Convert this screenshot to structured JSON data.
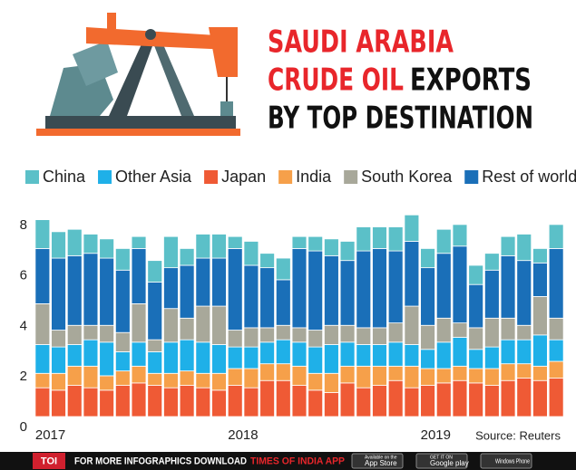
{
  "chart_data": {
    "type": "stacked_bar",
    "title": [
      "SAUDI ARABIA",
      "CRUDE OIL",
      "EXPORTS",
      "BY TOP DESTINATION"
    ],
    "source": "Source: Reuters",
    "categories": [
      "2017",
      null,
      null,
      null,
      null,
      null,
      null,
      null,
      null,
      null,
      null,
      null,
      "2018",
      null,
      null,
      null,
      null,
      null,
      null,
      null,
      null,
      null,
      null,
      null,
      "2019",
      null,
      null,
      null,
      null,
      null,
      null,
      null,
      null
    ],
    "series": [
      {
        "name": "China",
        "color": "#5bc0c8",
        "values": [
          1.2,
          1.1,
          1.1,
          0.8,
          0.8,
          0.9,
          0.5,
          0.9,
          1.3,
          0.7,
          1.0,
          1.0,
          0.5,
          1.0,
          0.6,
          0.9,
          0.5,
          0.6,
          0.7,
          0.8,
          1.0,
          0.9,
          1.0,
          1.1,
          0.8,
          1.0,
          0.9,
          0.8,
          0.7,
          0.8,
          1.1,
          0.6,
          1.0
        ]
      },
      {
        "name": "Other Asia",
        "color": "#1fb0e8",
        "values": [
          1.2,
          1.1,
          0.9,
          1.1,
          1.4,
          0.8,
          1.0,
          0.9,
          1.3,
          1.3,
          1.3,
          1.2,
          0.9,
          0.9,
          0.9,
          1.0,
          1.0,
          1.1,
          1.2,
          1.0,
          0.9,
          0.9,
          1.0,
          0.9,
          0.8,
          1.1,
          1.2,
          0.8,
          0.9,
          1.0,
          1.0,
          1.3,
          0.9
        ]
      },
      {
        "name": "Japan",
        "color": "#ef5a35",
        "values": [
          1.2,
          1.1,
          1.3,
          1.2,
          1.1,
          1.3,
          1.4,
          1.3,
          1.2,
          1.3,
          1.2,
          1.1,
          1.3,
          1.2,
          1.5,
          1.5,
          1.3,
          1.1,
          1.0,
          1.4,
          1.2,
          1.3,
          1.5,
          1.2,
          1.3,
          1.4,
          1.5,
          1.4,
          1.3,
          1.5,
          1.6,
          1.5,
          1.6
        ]
      },
      {
        "name": "India",
        "color": "#f6a04a",
        "values": [
          0.6,
          0.7,
          0.8,
          0.9,
          0.6,
          0.6,
          0.7,
          0.5,
          0.6,
          0.6,
          0.6,
          0.7,
          0.7,
          0.8,
          0.7,
          0.7,
          0.8,
          0.7,
          0.8,
          0.7,
          0.9,
          0.8,
          0.6,
          0.9,
          0.7,
          0.6,
          0.6,
          0.6,
          0.7,
          0.7,
          0.6,
          0.6,
          0.7
        ]
      },
      {
        "name": "South Korea",
        "color": "#a8a89a",
        "values": [
          1.7,
          0.7,
          0.8,
          0.6,
          0.7,
          0.8,
          1.6,
          0.5,
          1.4,
          0.9,
          1.5,
          1.6,
          0.7,
          0.8,
          0.6,
          0.6,
          0.6,
          0.7,
          0.8,
          0.7,
          0.7,
          0.7,
          0.8,
          1.6,
          1.0,
          1.0,
          0.6,
          0.9,
          1.2,
          0.9,
          0.6,
          1.6,
          0.9
        ]
      },
      {
        "name": "Rest of world",
        "color": "#1a6fb8",
        "values": [
          2.3,
          3.0,
          2.9,
          3.0,
          2.8,
          2.6,
          2.3,
          2.4,
          1.7,
          2.2,
          2.0,
          2.0,
          3.4,
          2.6,
          2.5,
          1.9,
          3.3,
          3.3,
          2.9,
          2.7,
          3.2,
          3.3,
          3.0,
          2.7,
          2.4,
          2.7,
          3.2,
          1.8,
          2.0,
          2.6,
          2.7,
          1.4,
          2.9
        ]
      }
    ],
    "ylim": [
      0,
      8.6
    ],
    "yticks": [
      0,
      2,
      4,
      6,
      8
    ],
    "grid": false
  },
  "footer": {
    "logo": "TOI",
    "text": "FOR MORE INFOGRAPHICS DOWNLOAD",
    "app": "TIMES OF INDIA APP",
    "badges": [
      {
        "small": "Available on the",
        "label": "App Store"
      },
      {
        "small": "GET IT ON",
        "label": "Google play"
      },
      {
        "small": "",
        "label": "Windows Phone"
      }
    ]
  }
}
